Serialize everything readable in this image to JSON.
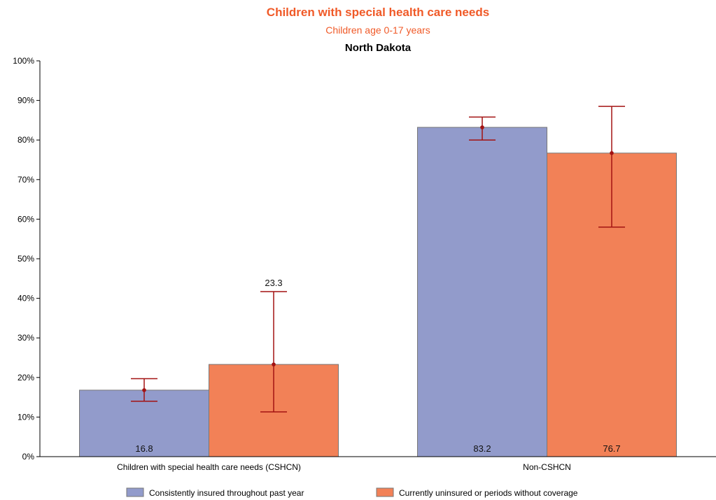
{
  "chart_data": {
    "type": "bar",
    "title": "Children with special health care needs",
    "subtitle": "Children age 0-17 years",
    "region": "North Dakota",
    "categories": [
      "Children with special health care needs (CSHCN)",
      "Non-CSHCN"
    ],
    "series": [
      {
        "name": "Consistently insured throughout past year",
        "color": "#929bcb",
        "values": [
          16.8,
          83.2
        ],
        "ci_low": [
          14.0,
          80.0
        ],
        "ci_high": [
          19.7,
          85.8
        ],
        "labels": [
          "16.8",
          "83.2"
        ]
      },
      {
        "name": "Currently uninsured or periods without coverage",
        "color": "#f28157",
        "values": [
          23.3,
          76.7
        ],
        "ci_low": [
          11.3,
          58.0
        ],
        "ci_high": [
          41.7,
          88.5
        ],
        "labels": [
          "23.3",
          "76.7"
        ]
      }
    ],
    "ylim": [
      0,
      100
    ],
    "yticks": [
      "0%",
      "10%",
      "20%",
      "30%",
      "40%",
      "50%",
      "60%",
      "70%",
      "80%",
      "90%",
      "100%"
    ],
    "grid": false,
    "legend": "bottom",
    "colors": {
      "title": "#f05a28",
      "error_bar": "#a31212",
      "bar_stroke": "#777777"
    }
  }
}
